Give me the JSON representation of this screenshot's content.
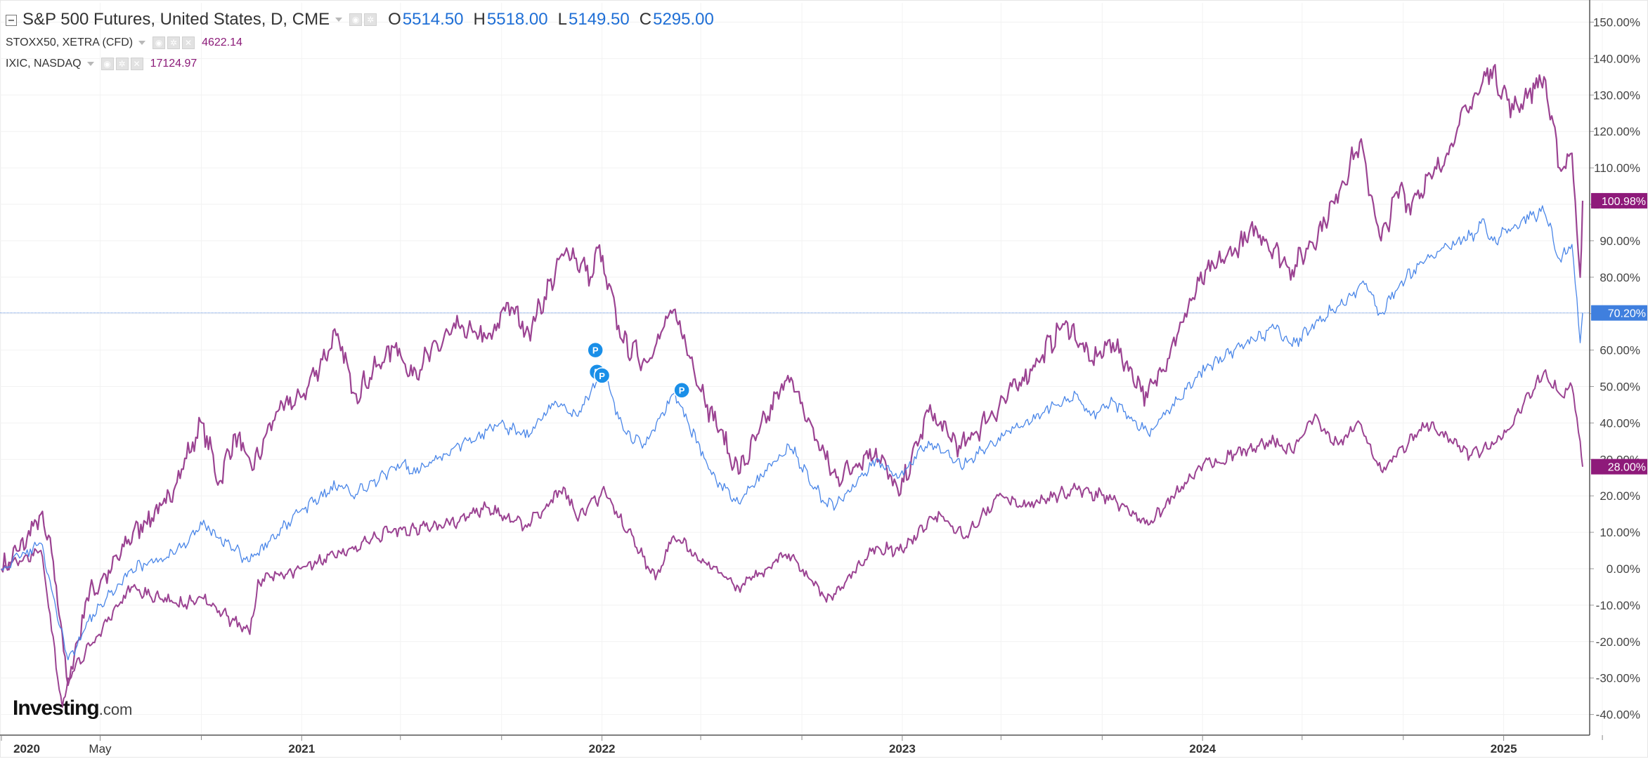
{
  "legend": {
    "main_title": "S&P 500 Futures, United States, D, CME",
    "open_label": "O",
    "open_value": "5514.50",
    "high_label": "H",
    "high_value": "5518.00",
    "low_label": "L",
    "low_value": "5149.50",
    "close_label": "C",
    "close_value": "5295.00",
    "series2_title": "STOXX50, XETRA (CFD)",
    "series2_value": "4622.14",
    "series3_title": "IXIC, NASDAQ",
    "series3_value": "17124.97"
  },
  "logo": {
    "brand": "Investing",
    "suffix": ".com"
  },
  "colors": {
    "sp500": "#4a86e8",
    "ixic": "#9b4392",
    "stoxx": "#9b4392",
    "label_ixic": "#8e1a7a",
    "label_sp": "#3f7fde"
  },
  "chart_data": {
    "type": "line",
    "x_axis": {
      "tick_labels": [
        "2020",
        "May",
        "2021",
        "2022",
        "2023",
        "2024",
        "2025"
      ],
      "tick_dates": [
        "2020-01-01",
        "2020-05-01",
        "2021-01-01",
        "2022-01-01",
        "2023-01-01",
        "2024-01-01",
        "2025-01-01"
      ],
      "range": [
        "2020-01-02",
        "2025-04-07"
      ],
      "minor_ticks": [
        "2020-09-01",
        "2021-05-01",
        "2021-09-01",
        "2022-05-01",
        "2022-09-01",
        "2023-05-01",
        "2023-09-01",
        "2024-05-01",
        "2024-09-01",
        "2025-05-01"
      ]
    },
    "y_axis": {
      "ticks": [
        150,
        140,
        130,
        120,
        110,
        100,
        90,
        80,
        70,
        60,
        50,
        40,
        30,
        20,
        10,
        0,
        -10,
        -20,
        -30,
        -40
      ],
      "unit": "%",
      "ylim": [
        -43,
        155
      ]
    },
    "grid": true,
    "reference_line": {
      "y": 70.2,
      "label": "70.20%"
    },
    "series": [
      {
        "name": "IXIC, NASDAQ",
        "color": "#9b4392",
        "end_label": "100.98%",
        "points": [
          [
            "2020-01-02",
            0
          ],
          [
            "2020-01-24",
            5
          ],
          [
            "2020-02-19",
            15
          ],
          [
            "2020-03-05",
            2
          ],
          [
            "2020-03-23",
            -32
          ],
          [
            "2020-04-15",
            -8
          ],
          [
            "2020-05-15",
            0
          ],
          [
            "2020-06-10",
            10
          ],
          [
            "2020-07-20",
            18
          ],
          [
            "2020-09-02",
            40
          ],
          [
            "2020-09-23",
            24
          ],
          [
            "2020-10-12",
            37
          ],
          [
            "2020-11-02",
            27
          ],
          [
            "2020-12-01",
            43
          ],
          [
            "2020-12-31",
            47
          ],
          [
            "2021-02-12",
            64
          ],
          [
            "2021-03-08",
            48
          ],
          [
            "2021-04-26",
            62
          ],
          [
            "2021-05-12",
            53
          ],
          [
            "2021-07-07",
            66
          ],
          [
            "2021-08-20",
            63
          ],
          [
            "2021-09-07",
            73
          ],
          [
            "2021-10-04",
            65
          ],
          [
            "2021-11-19",
            88
          ],
          [
            "2021-12-20",
            80
          ],
          [
            "2021-12-27",
            88
          ],
          [
            "2022-01-27",
            62
          ],
          [
            "2022-02-23",
            57
          ],
          [
            "2022-03-29",
            71
          ],
          [
            "2022-05-09",
            45
          ],
          [
            "2022-05-24",
            38
          ],
          [
            "2022-06-16",
            26
          ],
          [
            "2022-08-15",
            53
          ],
          [
            "2022-09-30",
            30
          ],
          [
            "2022-10-13",
            25
          ],
          [
            "2022-11-30",
            33
          ],
          [
            "2022-12-28",
            20
          ],
          [
            "2023-02-02",
            43
          ],
          [
            "2023-03-13",
            33
          ],
          [
            "2023-04-18",
            42
          ],
          [
            "2023-06-15",
            57
          ],
          [
            "2023-07-19",
            68
          ],
          [
            "2023-08-18",
            57
          ],
          [
            "2023-09-14",
            62
          ],
          [
            "2023-10-26",
            47
          ],
          [
            "2023-12-01",
            64
          ],
          [
            "2023-12-28",
            79
          ],
          [
            "2024-03-07",
            93
          ],
          [
            "2024-04-19",
            82
          ],
          [
            "2024-05-29",
            95
          ],
          [
            "2024-07-10",
            117
          ],
          [
            "2024-08-05",
            90
          ],
          [
            "2024-08-30",
            106
          ],
          [
            "2024-09-06",
            100
          ],
          [
            "2024-10-15",
            110
          ],
          [
            "2024-11-06",
            121
          ],
          [
            "2024-12-16",
            137
          ],
          [
            "2025-01-13",
            126
          ],
          [
            "2025-02-19",
            135
          ],
          [
            "2025-03-10",
            110
          ],
          [
            "2025-03-25",
            114
          ],
          [
            "2025-04-04",
            80
          ],
          [
            "2025-04-07",
            100.98
          ]
        ]
      },
      {
        "name": "S&P 500 Futures, United States, D, CME",
        "color": "#4a86e8",
        "end_label": "70.20%",
        "points": [
          [
            "2020-01-02",
            0
          ],
          [
            "2020-02-19",
            7
          ],
          [
            "2020-03-23",
            -25
          ],
          [
            "2020-04-30",
            -10
          ],
          [
            "2020-06-08",
            0
          ],
          [
            "2020-07-31",
            4
          ],
          [
            "2020-09-02",
            12
          ],
          [
            "2020-10-30",
            2
          ],
          [
            "2020-12-31",
            16
          ],
          [
            "2021-02-15",
            23
          ],
          [
            "2021-03-04",
            20
          ],
          [
            "2021-05-07",
            30
          ],
          [
            "2021-05-12",
            26
          ],
          [
            "2021-08-31",
            40
          ],
          [
            "2021-09-30",
            36
          ],
          [
            "2021-11-05",
            46
          ],
          [
            "2021-12-01",
            42
          ],
          [
            "2022-01-03",
            54
          ],
          [
            "2022-01-27",
            38
          ],
          [
            "2022-02-23",
            34
          ],
          [
            "2022-03-29",
            48
          ],
          [
            "2022-05-20",
            24
          ],
          [
            "2022-06-16",
            18
          ],
          [
            "2022-08-16",
            34
          ],
          [
            "2022-09-30",
            18
          ],
          [
            "2022-10-12",
            17
          ],
          [
            "2022-11-30",
            30
          ],
          [
            "2022-12-28",
            25
          ],
          [
            "2023-02-02",
            35
          ],
          [
            "2023-03-13",
            28
          ],
          [
            "2023-04-28",
            36
          ],
          [
            "2023-06-30",
            44
          ],
          [
            "2023-07-31",
            48
          ],
          [
            "2023-08-18",
            42
          ],
          [
            "2023-09-14",
            46
          ],
          [
            "2023-10-27",
            37
          ],
          [
            "2023-12-29",
            54
          ],
          [
            "2024-03-28",
            66
          ],
          [
            "2024-04-19",
            61
          ],
          [
            "2024-05-21",
            68
          ],
          [
            "2024-07-16",
            78
          ],
          [
            "2024-08-05",
            70
          ],
          [
            "2024-08-30",
            79
          ],
          [
            "2024-10-18",
            88
          ],
          [
            "2024-11-29",
            92
          ],
          [
            "2024-12-06",
            96
          ],
          [
            "2024-12-19",
            90
          ],
          [
            "2025-01-24",
            96
          ],
          [
            "2025-02-19",
            98
          ],
          [
            "2025-03-10",
            85
          ],
          [
            "2025-03-25",
            89
          ],
          [
            "2025-04-04",
            62
          ],
          [
            "2025-04-07",
            70.2
          ]
        ]
      },
      {
        "name": "STOXX50, XETRA (CFD)",
        "color": "#9b4392",
        "end_label": "28.00%",
        "points": [
          [
            "2020-01-02",
            0
          ],
          [
            "2020-02-19",
            5
          ],
          [
            "2020-03-16",
            -38
          ],
          [
            "2020-03-23",
            -30
          ],
          [
            "2020-04-30",
            -18
          ],
          [
            "2020-06-08",
            -5
          ],
          [
            "2020-08-03",
            -10
          ],
          [
            "2020-09-02",
            -8
          ],
          [
            "2020-10-30",
            -18
          ],
          [
            "2020-11-09",
            -3
          ],
          [
            "2020-12-31",
            0
          ],
          [
            "2021-02-26",
            5
          ],
          [
            "2021-04-16",
            10
          ],
          [
            "2021-06-30",
            12
          ],
          [
            "2021-08-13",
            17
          ],
          [
            "2021-09-30",
            12
          ],
          [
            "2021-11-17",
            22
          ],
          [
            "2021-12-01",
            14
          ],
          [
            "2022-01-05",
            21
          ],
          [
            "2022-03-07",
            -3
          ],
          [
            "2022-03-29",
            9
          ],
          [
            "2022-05-09",
            1
          ],
          [
            "2022-06-16",
            -5
          ],
          [
            "2022-08-16",
            4
          ],
          [
            "2022-09-29",
            -8
          ],
          [
            "2022-10-12",
            -7
          ],
          [
            "2022-11-30",
            6
          ],
          [
            "2022-12-28",
            5
          ],
          [
            "2023-02-16",
            15
          ],
          [
            "2023-03-20",
            9
          ],
          [
            "2023-04-28",
            20
          ],
          [
            "2023-05-31",
            17
          ],
          [
            "2023-07-31",
            22
          ],
          [
            "2023-09-14",
            19
          ],
          [
            "2023-10-27",
            12
          ],
          [
            "2023-12-29",
            28
          ],
          [
            "2024-03-28",
            35
          ],
          [
            "2024-04-19",
            32
          ],
          [
            "2024-05-15",
            41
          ],
          [
            "2024-06-14",
            34
          ],
          [
            "2024-07-10",
            40
          ],
          [
            "2024-08-05",
            27
          ],
          [
            "2024-09-30",
            40
          ],
          [
            "2024-11-21",
            31
          ],
          [
            "2024-12-31",
            36
          ],
          [
            "2025-02-19",
            54
          ],
          [
            "2025-03-10",
            48
          ],
          [
            "2025-03-25",
            50
          ],
          [
            "2025-04-04",
            35
          ],
          [
            "2025-04-07",
            28
          ]
        ]
      }
    ],
    "event_markers": [
      {
        "label": "P",
        "date": "2021-12-24",
        "y": 60
      },
      {
        "label": "P",
        "date": "2021-12-26",
        "y": 54
      },
      {
        "label": "P",
        "date": "2022-01-01",
        "y": 53
      },
      {
        "label": "P",
        "date": "2022-04-08",
        "y": 49
      }
    ]
  }
}
